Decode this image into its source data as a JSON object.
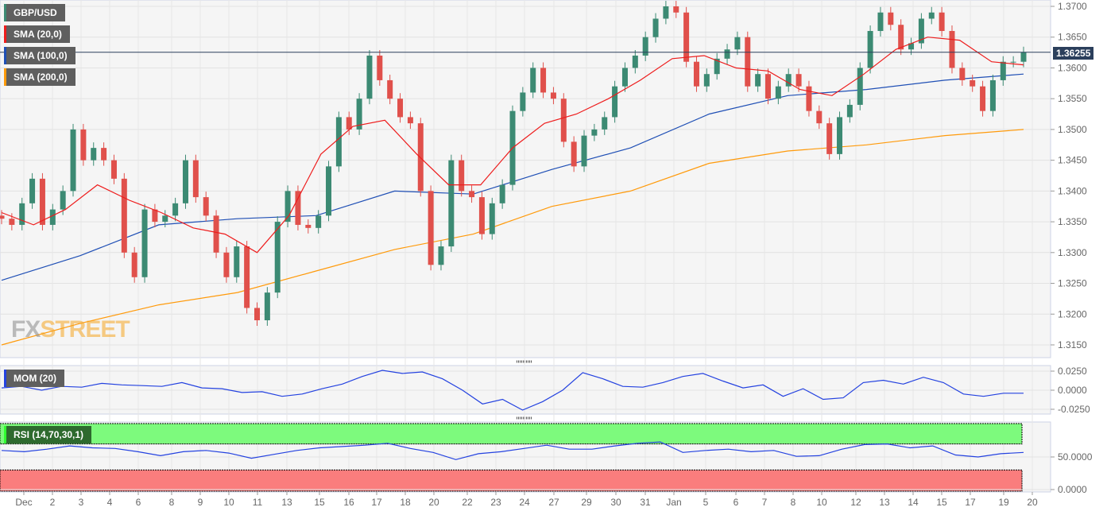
{
  "chart_data": {
    "type": "candlestick",
    "symbol": "GBP/USD",
    "indicators": [
      "SMA (20,0)",
      "SMA (100,0)",
      "SMA (200,0)"
    ],
    "last_price": "1.36255",
    "y_ticks": [
      "1.3700",
      "1.3650",
      "1.3600",
      "1.3550",
      "1.3500",
      "1.3450",
      "1.3400",
      "1.3350",
      "1.3300",
      "1.3250",
      "1.3200",
      "1.3150"
    ],
    "ylim": [
      1.313,
      1.371
    ],
    "x_labels": [
      "Dec",
      "2",
      "3",
      "4",
      "6",
      "8",
      "9",
      "10",
      "11",
      "13",
      "15",
      "16",
      "17",
      "18",
      "20",
      "22",
      "23",
      "24",
      "27",
      "29",
      "30",
      "31",
      "Jan",
      "5",
      "6",
      "7",
      "8",
      "10",
      "12",
      "13",
      "14",
      "15",
      "17",
      "19",
      "20"
    ],
    "closes": [
      1.3355,
      1.3345,
      1.338,
      1.342,
      1.3345,
      1.337,
      1.34,
      1.35,
      1.345,
      1.347,
      1.345,
      1.342,
      1.33,
      1.326,
      1.337,
      1.335,
      1.336,
      1.338,
      1.345,
      1.339,
      1.336,
      1.33,
      1.326,
      1.331,
      1.321,
      1.319,
      1.3235,
      1.335,
      1.34,
      1.3345,
      1.334,
      1.336,
      1.344,
      1.352,
      1.35,
      1.355,
      1.362,
      1.358,
      1.355,
      1.352,
      1.351,
      1.34,
      1.328,
      1.331,
      1.345,
      1.34,
      1.339,
      1.333,
      1.338,
      1.341,
      1.353,
      1.356,
      1.36,
      1.356,
      1.355,
      1.348,
      1.344,
      1.349,
      1.35,
      1.352,
      1.357,
      1.36,
      1.362,
      1.365,
      1.368,
      1.37,
      1.369,
      1.361,
      1.357,
      1.359,
      1.3615,
      1.363,
      1.365,
      1.357,
      1.359,
      1.355,
      1.357,
      1.359,
      1.357,
      1.353,
      1.351,
      1.346,
      1.352,
      1.354,
      1.36,
      1.366,
      1.369,
      1.367,
      1.363,
      1.364,
      1.368,
      1.369,
      1.366,
      1.36,
      1.358,
      1.357,
      1.353,
      1.358,
      1.361,
      1.361,
      1.36255
    ],
    "sma20": [
      1.3365,
      1.3345,
      1.337,
      1.341,
      1.3385,
      1.3365,
      1.334,
      1.333,
      1.33,
      1.336,
      1.346,
      1.3505,
      1.3515,
      1.346,
      1.341,
      1.341,
      1.347,
      1.351,
      1.3525,
      1.355,
      1.358,
      1.3615,
      1.362,
      1.36,
      1.3595,
      1.3565,
      1.3555,
      1.359,
      1.363,
      1.365,
      1.3645,
      1.361,
      1.3605
    ],
    "sma100": [
      1.3255,
      1.3295,
      1.3345,
      1.3355,
      1.336,
      1.34,
      1.3395,
      1.3435,
      1.347,
      1.3525,
      1.3555,
      1.3565,
      1.358,
      1.359
    ],
    "sma200": [
      1.315,
      1.3185,
      1.3215,
      1.3235,
      1.327,
      1.3305,
      1.333,
      1.3375,
      1.34,
      1.3445,
      1.3465,
      1.3475,
      1.349,
      1.35
    ],
    "mom": {
      "label": "MOM (20)",
      "ticks": [
        "0.0250",
        "0.0000",
        "-0.0250"
      ],
      "values": [
        0.003,
        0.005,
        0.0,
        0.005,
        0.004,
        0.009,
        0.007,
        0.006,
        0.005,
        0.01,
        0.003,
        0.002,
        -0.003,
        -0.002,
        -0.008,
        -0.005,
        0.002,
        0.008,
        0.018,
        0.026,
        0.022,
        0.024,
        0.015,
        0.0,
        -0.018,
        -0.012,
        -0.026,
        -0.015,
        0.0,
        0.023,
        0.015,
        0.005,
        0.004,
        0.01,
        0.018,
        0.022,
        0.012,
        0.003,
        0.007,
        -0.008,
        0.002,
        -0.012,
        -0.01,
        0.01,
        0.013,
        0.008,
        0.017,
        0.01,
        -0.005,
        -0.008,
        -0.004,
        -0.004
      ]
    },
    "rsi": {
      "label": "RSI (14,70,30,1)",
      "ticks": [
        "50.0000",
        "0.0000"
      ],
      "overbought": 70,
      "oversold": 30,
      "values": [
        60,
        58,
        62,
        67,
        64,
        63,
        58,
        52,
        58,
        60,
        56,
        48,
        54,
        60,
        64,
        66,
        68,
        71,
        63,
        57,
        46,
        55,
        58,
        63,
        68,
        62,
        62,
        67,
        71,
        73,
        57,
        60,
        62,
        58,
        60,
        51,
        52,
        62,
        69,
        70,
        64,
        67,
        53,
        50,
        55,
        57
      ]
    },
    "colors": {
      "up": "#3c8a73",
      "down": "#e0504b",
      "sma20": "#ee1c1c",
      "sma100": "#1f4fb5",
      "sma200": "#ff9a0a",
      "osc": "#2442e0"
    }
  },
  "watermark": "FXSTREET"
}
